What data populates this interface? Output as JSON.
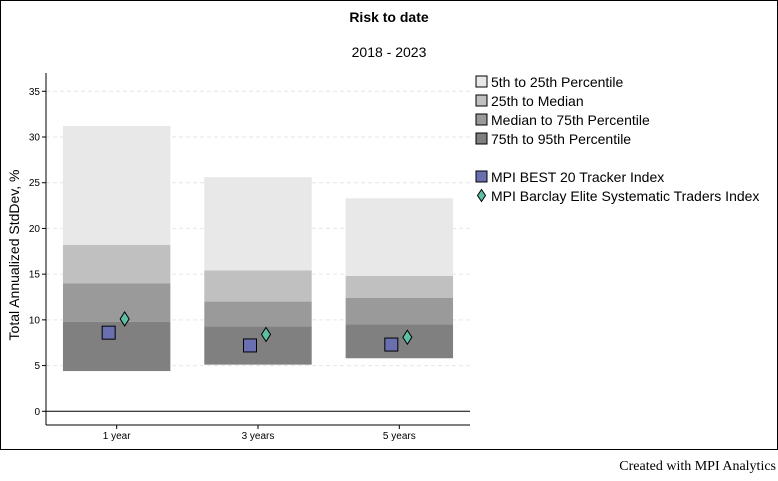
{
  "chart_data": {
    "type": "box-percentile",
    "title": "Risk to date",
    "subtitle": "2018 - 2023",
    "ylabel": "Total Annualized StdDev, %",
    "xlabel": "",
    "ylim": [
      -1.5,
      37
    ],
    "yticks": [
      0,
      5,
      10,
      15,
      20,
      25,
      30,
      35
    ],
    "grid": true,
    "legend_position": "right",
    "categories": [
      "1 year",
      "3 years",
      "5 years"
    ],
    "percentiles": [
      {
        "p5": 4.4,
        "p25": 9.8,
        "median": 14.0,
        "p75": 18.2,
        "p95": 31.2
      },
      {
        "p5": 5.1,
        "p25": 9.3,
        "median": 12.0,
        "p75": 15.4,
        "p95": 25.6
      },
      {
        "p5": 5.8,
        "p25": 9.5,
        "median": 12.4,
        "p75": 14.8,
        "p95": 23.3
      }
    ],
    "bands": [
      {
        "name": "5th to 25th Percentile",
        "color": "#e8e8e8",
        "from": "p75",
        "to": "p95"
      },
      {
        "name": "25th to Median",
        "color": "#c0c0c0",
        "from": "median",
        "to": "p75"
      },
      {
        "name": "Median to 75th Percentile",
        "color": "#9a9a9a",
        "from": "p25",
        "to": "median"
      },
      {
        "name": "75th to 95th Percentile",
        "color": "#808080",
        "from": "p5",
        "to": "p25"
      }
    ],
    "series": [
      {
        "name": "MPI BEST 20 Tracker Index",
        "marker": "square",
        "color": "#6a6fb0",
        "values": [
          8.6,
          7.2,
          7.3
        ]
      },
      {
        "name": "MPI Barclay Elite Systematic Traders Index",
        "marker": "diamond",
        "color": "#5ebfa5",
        "values": [
          10.1,
          8.4,
          8.1
        ]
      }
    ]
  },
  "footer": "Created with MPI Analytics"
}
